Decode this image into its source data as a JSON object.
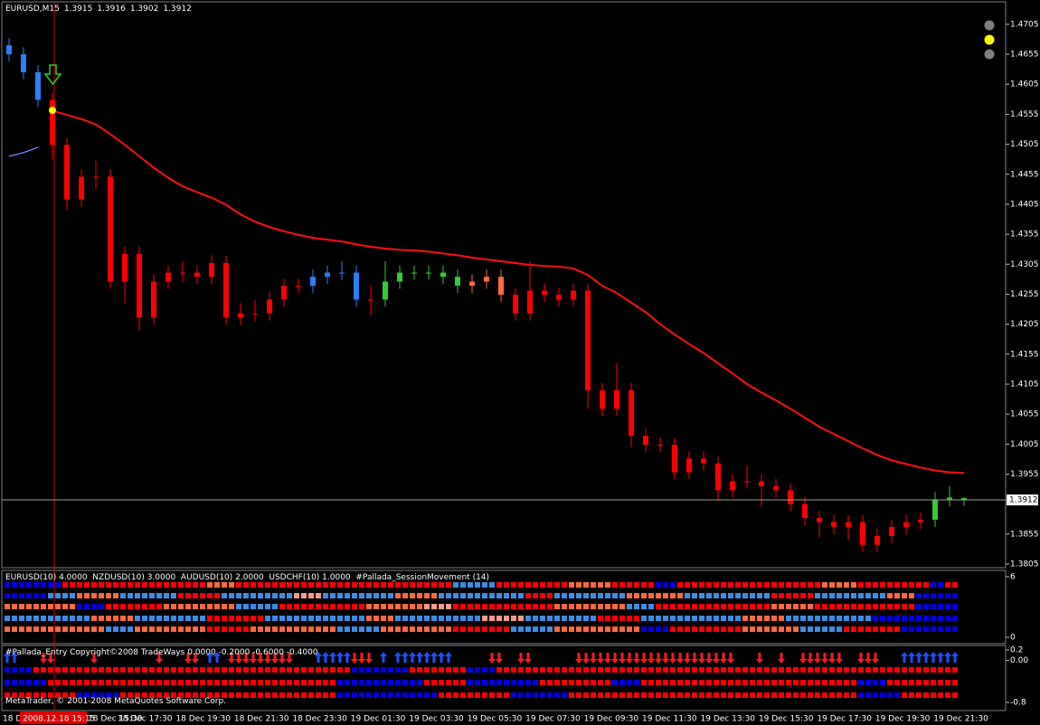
{
  "chart_data": {
    "type": "candlestick",
    "symbol": "EURUSD,M15",
    "open": [
      1.467,
      1.4655,
      1.4625,
      1.4579,
      1.4504,
      1.4413,
      1.4451,
      1.4451,
      1.4276,
      1.4322,
      1.4216,
      1.4276,
      1.4291,
      1.4291,
      1.4284,
      1.4307,
      1.4216,
      1.4223,
      1.4223,
      1.4246,
      1.4269,
      1.4269,
      1.4284,
      1.4291,
      1.4291,
      1.4246,
      1.4246,
      1.4276,
      1.4291,
      1.4291,
      1.4291,
      1.4284,
      1.4269,
      1.4276,
      1.4284,
      1.4254,
      1.4223,
      1.4261,
      1.4254,
      1.4246,
      1.4261,
      1.4095,
      1.4064,
      1.4095,
      1.4019,
      1.4004,
      1.4004,
      1.3958,
      1.3981,
      1.3973,
      1.3928,
      1.3943,
      1.3943,
      1.3935,
      1.3928,
      1.3905,
      1.3882,
      1.3875,
      1.3867,
      1.3875,
      1.3837,
      1.3852,
      1.3867,
      1.3875,
      1.3879,
      1.3913,
      1.3915
    ],
    "high": [
      1.4682,
      1.4667,
      1.4637,
      1.4591,
      1.4516,
      1.4463,
      1.4478,
      1.4463,
      1.4334,
      1.4334,
      1.4288,
      1.4303,
      1.431,
      1.4303,
      1.432,
      1.4319,
      1.424,
      1.4245,
      1.4258,
      1.4281,
      1.4281,
      1.4296,
      1.4303,
      1.431,
      1.4303,
      1.427,
      1.431,
      1.4303,
      1.4303,
      1.4303,
      1.4303,
      1.4296,
      1.4288,
      1.4296,
      1.4296,
      1.4266,
      1.431,
      1.4273,
      1.4266,
      1.4273,
      1.4273,
      1.4107,
      1.414,
      1.4107,
      1.4031,
      1.4016,
      1.4016,
      1.3993,
      1.3993,
      1.3985,
      1.3955,
      1.397,
      1.3955,
      1.3947,
      1.394,
      1.3917,
      1.3894,
      1.3887,
      1.3887,
      1.3887,
      1.3864,
      1.3879,
      1.3887,
      1.3891,
      1.3925,
      1.3935,
      1.3916
    ],
    "low": [
      1.4643,
      1.4613,
      1.4567,
      1.448,
      1.4395,
      1.4401,
      1.443,
      1.4264,
      1.424,
      1.4195,
      1.4204,
      1.4264,
      1.4275,
      1.4272,
      1.4272,
      1.4204,
      1.4204,
      1.421,
      1.4211,
      1.4234,
      1.4257,
      1.4257,
      1.4272,
      1.4279,
      1.4234,
      1.422,
      1.4234,
      1.4264,
      1.4279,
      1.4279,
      1.4272,
      1.4257,
      1.4257,
      1.4264,
      1.4242,
      1.4211,
      1.4211,
      1.4242,
      1.4234,
      1.4234,
      1.4064,
      1.4052,
      1.4052,
      1.4,
      1.3992,
      1.3992,
      1.3946,
      1.3946,
      1.3961,
      1.391,
      1.3916,
      1.3931,
      1.39,
      1.3916,
      1.3893,
      1.387,
      1.385,
      1.3855,
      1.3845,
      1.3825,
      1.3825,
      1.384,
      1.3855,
      1.3863,
      1.3867,
      1.3901,
      1.3902
    ],
    "close": [
      1.4655,
      1.4625,
      1.4579,
      1.4504,
      1.4413,
      1.4451,
      1.4451,
      1.4276,
      1.4322,
      1.4216,
      1.4276,
      1.4291,
      1.4291,
      1.4284,
      1.4307,
      1.4216,
      1.4223,
      1.4223,
      1.4246,
      1.4269,
      1.4269,
      1.4284,
      1.4291,
      1.4291,
      1.4246,
      1.4246,
      1.4276,
      1.4291,
      1.4291,
      1.4291,
      1.4284,
      1.4269,
      1.4276,
      1.4284,
      1.4254,
      1.4223,
      1.4261,
      1.4254,
      1.4246,
      1.4261,
      1.4095,
      1.4064,
      1.4095,
      1.4019,
      1.4004,
      1.4004,
      1.3958,
      1.3981,
      1.3973,
      1.3928,
      1.3943,
      1.3943,
      1.3935,
      1.3928,
      1.3905,
      1.3882,
      1.3875,
      1.3867,
      1.3875,
      1.3837,
      1.3852,
      1.3867,
      1.3875,
      1.3879,
      1.3913,
      1.3916,
      1.3912
    ],
    "candle_colors": "CCCRRRRRRRRRRRRRRRRRRCCCCRGGGGGGSSSRRRRRRRRRRRRRRRRRRRRRRRRRRRRRGGG",
    "palette": {
      "R": "#ff0000",
      "B": "#0000e0",
      "L": "#3a8ee6",
      "S": "#ff6a3d",
      "P": "#ff9a8a",
      "G": "#32cd32",
      "C": "#2a7fff",
      "U": "#1e50ff",
      "D": "#ff1a1a"
    },
    "lines": [
      {
        "color": "#ff1010",
        "values": [
          null,
          null,
          null,
          1.4561,
          1.4554,
          1.4547,
          1.4538,
          1.4522,
          1.4504,
          1.4485,
          1.4466,
          1.4449,
          1.4435,
          1.4425,
          1.4416,
          1.4404,
          1.4388,
          1.4376,
          1.4367,
          1.436,
          1.4354,
          1.4349,
          1.4346,
          1.4343,
          1.4338,
          1.4334,
          1.4331,
          1.4329,
          1.4328,
          1.4326,
          1.4323,
          1.432,
          1.4316,
          1.4313,
          1.431,
          1.4307,
          1.4304,
          1.4302,
          1.4301,
          1.4298,
          1.4287,
          1.4269,
          1.4257,
          1.4241,
          1.4225,
          1.4205,
          1.4188,
          1.4172,
          1.4157,
          1.414,
          1.4123,
          1.4105,
          1.4091,
          1.4078,
          1.4064,
          1.4049,
          1.4034,
          1.4022,
          1.401,
          1.3998,
          1.3987,
          1.3978,
          1.3972,
          1.3966,
          1.3961,
          1.3958,
          1.3957
        ]
      },
      {
        "color": "#6b8cff",
        "values": [
          1.4485,
          1.4491,
          1.45,
          null,
          null,
          null,
          null,
          null,
          null,
          null,
          null,
          null,
          null,
          null,
          null,
          null,
          null,
          null,
          null,
          null,
          null,
          null,
          null,
          null,
          null,
          null,
          null,
          null,
          null,
          null,
          null,
          null,
          null,
          null,
          null,
          null,
          null,
          null,
          null,
          null,
          null,
          null,
          null,
          null,
          null,
          null,
          null,
          null,
          null,
          null,
          null,
          null,
          null,
          null,
          null,
          null,
          null,
          null,
          null,
          null,
          null,
          null,
          null,
          null,
          null,
          null,
          null
        ]
      }
    ],
    "ylim": [
      1.3799,
      1.4738
    ],
    "yticks": [
      1.4705,
      1.4655,
      1.4605,
      1.4555,
      1.4505,
      1.4455,
      1.4405,
      1.4355,
      1.4305,
      1.4255,
      1.4205,
      1.4155,
      1.4105,
      1.4055,
      1.4005,
      1.3955,
      1.3855,
      1.3805
    ],
    "cursor_day": "18 D",
    "cursor_time": "2008.12.18 15:15",
    "time_labels": [
      "18 Dec 15:30",
      "18 Dec 17:30",
      "18 Dec 19:30",
      "18 Dec 21:30",
      "18 Dec 23:30",
      "19 Dec 01:30",
      "19 Dec 03:30",
      "19 Dec 05:30",
      "19 Dec 07:30",
      "19 Dec 09:30",
      "19 Dec 11:30",
      "19 Dec 13:30",
      "19 Dec 15:30",
      "19 Dec 17:30",
      "19 Dec 19:30",
      "19 Dec 21:30"
    ],
    "panels": [
      {
        "title": "EURUSD(10) 4.0000  NZDUSD(10) 3.0000  AUDUSD(10) 2.0000  USDCHF(10) 1.0000  #Pallada_SessionMovement (14)",
        "ylim": [
          0,
          6
        ],
        "yticks": [
          6,
          0
        ],
        "rows": [
          "BBBBBBBBRRRRRRRRRRRRRRRRRRRRSSSSRRRRRRRRRRRRRRRRRRRRRRRRRRRRRRLLLLLLRRRRRRRRRRSSSSSSRRRRRRBBBRRRRRRRRRRRRRRRRRRRRSSSSSRRRRRRRRRRBBRR",
          "BBBBBBLLLLSSSSSSLLLLLLLLRRRRRRLLLLLLLLLLPPPPLLLLLLLLLLSSSSSSLLLLLLLLLLLLRRRRLLLLLLLLLLSSSSSSSSLLLLLLLLLLLLRRRRRRLLLLLLLLLLSSSSBBBBBB",
          "SSSSSSSSSSBBBBRRRRRRRRSSSSSSSSSSLLLLLLRRRRRRRRRRRRSSSSSSSSPPPPRRRRRRRRRRRRRRSSSSSSSSSSLLLLRRRRRRRRRRRRRRRRSSSSSSRRRRRRRRRRRRRRBBBBBB",
          "LLLLLLLLLLLLSSSSSSLLLLLLLLLLRRRRRRRRLLLLLLLLLLLLLLSSSSLLLLLLLLLLLLPPPPPPLLLLLLLLLLRRRRRRLLLLLLLLLLLLLLSSSSSSLLLLLLLLLLLLBBBBBBBBBBBB",
          "SSSSSSSSSSSSSSLLLLSSSSSSSSSSRRRRRRSSSSSSSSSSSSLLLLLLSSSSSSSSSSRRRRRRRRLLLLLLSSSSSSSSSSSSBBBBRRRRRRRRRRSSSSSSSSLLLLLLRRRRRRRRBBBBBBBB"
        ]
      },
      {
        "title": "#Pallada_Entry Copyright©2008 TradeWays 0.0000 -0.2000 -0.6000 -0.4000",
        "ylim": [
          -0.8,
          0.2
        ],
        "yticks": [
          0.2,
          {
            "value": 0,
            "label": "0.00"
          },
          -0.8
        ],
        "arrows": "UU...DD.....D........D...DD.UU.DDDDDDDDD...UUUUUDDD.U.UUUUUUUU.....DD..DD......DDDDDDDDDDDDDDDDDDDDDD...D..D..DDDDDD..DDD...UUUUUUUU",
        "rows": [
          "BBBBRRRRRRRRRRRRRRRRRRRRRRRRRRRRRRRRRRRRRRRRRRRRBBBBBBBBRRRRRRRRBBBBRRRRRRRRRRRRRRRRRRRRRRRRRRRRRRRRRRRRRRRRRRRRRRRRRRRRRRRRRRRRRRRR",
          "BBBBBBRRRRRRRRRRRRRRRRRRRRRRRRRRRRRRRRRRRRRRRRBBBBBBBBBBBBRRRRRRBBBBBBBBBBRRRRRRRRRRBBBBRRRRRRRRRRRRRRRRRRRRRRRRRRRRRRBBBBRRRRRRRRRR",
          "RRRRRRRRRRBBBBBBRRRRRRRRRRRRRRRRRRRRRRRRRRRRRRBBBBBBBBBBBBBBRRRRRRRRRRBBBBBBBBRRRRRRRRRRRRRRRRRRRRRRRRRRRRRRRRRRRRRRRRBBBBBBRRRRRRRR"
        ]
      }
    ],
    "footer": "MetaTrader, © 2001-2008 MetaQuotes Software Corp."
  }
}
